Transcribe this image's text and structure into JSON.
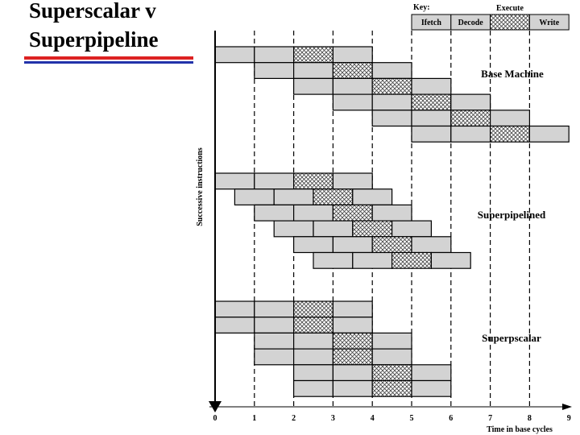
{
  "title": [
    "Superscalar v",
    "Superpipeline"
  ],
  "key": {
    "label": "Key:",
    "stages": [
      "Ifetch",
      "Decode",
      "Execute",
      "Write"
    ]
  },
  "sections": [
    "Base Machine",
    "Superpipelined",
    "Superpscalar"
  ],
  "y_axis_label": "Successive instructions",
  "x_axis": {
    "ticks": [
      0,
      1,
      2,
      3,
      4,
      5,
      6,
      7,
      8,
      9
    ],
    "label": "Time in base cycles"
  }
}
